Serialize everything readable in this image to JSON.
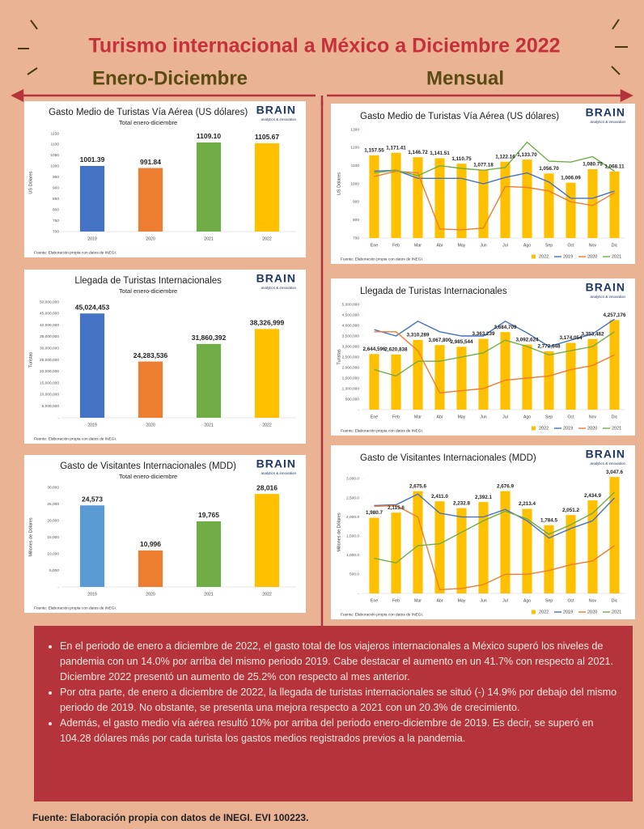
{
  "header": {
    "title": "Turismo internacional a México a Diciembre 2022",
    "left_heading": "Enero-Diciembre",
    "right_heading": "Mensual"
  },
  "logo": {
    "name": "BRAIN",
    "tagline": "analytics & innovation"
  },
  "chart_data": [
    {
      "type": "bar",
      "title": "Gasto Medio de Turistas Vía Aérea (US dólares)",
      "subtitle": "Total enero-diciembre",
      "y_label": "US Dólares",
      "note": "Fuente: Elaboración propia con datos de INEGI.",
      "categories": [
        "2019",
        "2020",
        "2021",
        "2022"
      ],
      "values": [
        1001.39,
        991.84,
        1109.1,
        1105.67
      ],
      "value_labels": [
        "1001.39",
        "991.84",
        "1109.10",
        "1105.67"
      ],
      "colors": [
        "#4472c4",
        "#ed7d31",
        "#70ad47",
        "#ffc000"
      ],
      "ylim": [
        700,
        1150
      ],
      "yticks": [
        700,
        750,
        800,
        850,
        900,
        950,
        1000,
        1050,
        1100,
        1150
      ],
      "grid": false
    },
    {
      "type": "bar",
      "title": "Llegada de Turistas Internacionales",
      "subtitle": "Total enero-diciembre",
      "y_label": "Turistas",
      "note": "Fuente: Elaboración propia con datos de INEGI.",
      "categories": [
        "2019",
        "2020",
        "2021",
        "2022"
      ],
      "values": [
        45024453,
        24283536,
        31860392,
        38326999
      ],
      "value_labels": [
        "45,024,453",
        "24,283,536",
        "31,860,392",
        "38,326,999"
      ],
      "colors": [
        "#4472c4",
        "#ed7d31",
        "#70ad47",
        "#ffc000"
      ],
      "ylim": [
        0,
        50000000
      ],
      "yticks": [
        {
          "value": 0,
          "label": "-"
        },
        {
          "value": 5000000,
          "label": "5,000,000"
        },
        {
          "value": 10000000,
          "label": "10,000,000"
        },
        {
          "value": 15000000,
          "label": "15,000,000"
        },
        {
          "value": 20000000,
          "label": "20,000,000"
        },
        {
          "value": 25000000,
          "label": "25,000,000"
        },
        {
          "value": 30000000,
          "label": "30,000,000"
        },
        {
          "value": 35000000,
          "label": "35,000,000"
        },
        {
          "value": 40000000,
          "label": "40,000,000"
        },
        {
          "value": 45000000,
          "label": "45,000,000"
        },
        {
          "value": 50000000,
          "label": "50,000,000"
        }
      ],
      "grid": false
    },
    {
      "type": "bar",
      "title": "Gasto de Visitantes Internacionales (MDD)",
      "subtitle": "Total enero-diciembre",
      "y_label": "Millones de Dólares",
      "note": "Fuente: Elaboración propia con datos de INEGI.",
      "categories": [
        "2019",
        "2020",
        "2021",
        "2022"
      ],
      "values": [
        24573,
        10996,
        19765,
        28016
      ],
      "value_labels": [
        "24,573",
        "10,996",
        "19,765",
        "28,016"
      ],
      "colors": [
        "#5b9bd5",
        "#ed7d31",
        "#70ad47",
        "#ffc000"
      ],
      "ylim": [
        0,
        30000
      ],
      "yticks": [
        {
          "value": 0,
          "label": "-"
        },
        {
          "value": 5000,
          "label": "5,000"
        },
        {
          "value": 10000,
          "label": "10,000"
        },
        {
          "value": 15000,
          "label": "15,000"
        },
        {
          "value": 20000,
          "label": "20,000"
        },
        {
          "value": 25000,
          "label": "25,000"
        },
        {
          "value": 30000,
          "label": "30,000"
        }
      ],
      "grid": false
    },
    {
      "type": "combo",
      "title": "Gasto Medio de Turistas Vía Aérea (US dólares)",
      "y_label": "US Dólares",
      "note": "Fuente: Elaboración propia con datos de INEGI.",
      "categories": [
        "Ene",
        "Feb",
        "Mar",
        "Abr",
        "May",
        "Jun",
        "Jul",
        "Ago",
        "Sep",
        "Oct",
        "Nov",
        "Dic"
      ],
      "ylim": [
        700,
        1300
      ],
      "yticks": [
        700,
        800,
        900,
        1000,
        1100,
        1200,
        1300
      ],
      "grid": false,
      "legend": "bottom",
      "series": [
        {
          "name": "2022",
          "kind": "bar",
          "color": "#ffc000",
          "values": [
            1157.55,
            1171.41,
            1146.72,
            1141.51,
            1110.75,
            1077.18,
            1122.16,
            1133.7,
            1056.7,
            1006.09,
            1080.75,
            1068.11
          ],
          "value_labels": [
            "1,157.55",
            "1,171.41",
            "1,146.72",
            "1,141.51",
            "1,110.75",
            "1,077.18",
            "1,122.16",
            "1,133.70",
            "1,056.70",
            "1,006.09",
            "1,080.75",
            "1,068.11"
          ]
        },
        {
          "name": "2019",
          "kind": "line",
          "color": "#4472c4",
          "values": [
            1070,
            1075,
            1030,
            1030,
            1030,
            1000,
            1035,
            1060,
            1010,
            920,
            920,
            960
          ]
        },
        {
          "name": "2020",
          "kind": "line",
          "color": "#ed7d31",
          "values": [
            1040,
            1070,
            1060,
            750,
            745,
            755,
            985,
            980,
            960,
            900,
            880,
            950
          ]
        },
        {
          "name": "2021",
          "kind": "line",
          "color": "#70ad47",
          "values": [
            1060,
            1075,
            1045,
            1100,
            1085,
            1075,
            1090,
            1230,
            1125,
            1120,
            1150,
            1070
          ]
        }
      ]
    },
    {
      "type": "combo",
      "title": "Llegada de Turistas Internacionales",
      "y_label": "Turistas",
      "note": "Fuente: Elaboración propia con datos de INEGI.",
      "categories": [
        "Ene",
        "Feb",
        "Mar",
        "Abr",
        "May",
        "Jun",
        "Jul",
        "Ago",
        "Sep",
        "Oct",
        "Nov",
        "Dic"
      ],
      "ylim": [
        0,
        5000000
      ],
      "yticks": [
        {
          "value": 0,
          "label": "-"
        },
        {
          "value": 500000,
          "label": "500,000"
        },
        {
          "value": 1000000,
          "label": "1,000,000"
        },
        {
          "value": 1500000,
          "label": "1,500,000"
        },
        {
          "value": 2000000,
          "label": "2,000,000"
        },
        {
          "value": 2500000,
          "label": "2,500,000"
        },
        {
          "value": 3000000,
          "label": "3,000,000"
        },
        {
          "value": 3500000,
          "label": "3,500,000"
        },
        {
          "value": 4000000,
          "label": "4,000,000"
        },
        {
          "value": 4500000,
          "label": "4,500,000"
        },
        {
          "value": 5000000,
          "label": "5,000,000"
        }
      ],
      "grid": false,
      "legend": "bottom",
      "series": [
        {
          "name": "2022",
          "kind": "bar",
          "color": "#ffc000",
          "values": [
            2644596,
            2620838,
            3310289,
            3067800,
            2985544,
            3363239,
            3684709,
            3092624,
            2772648,
            3174054,
            3353482,
            4257176
          ],
          "value_labels": [
            "2,644,596",
            "2,620,838",
            "3,310,289",
            "3,067,800",
            "2,985,544",
            "3,363,239",
            "3,684,709",
            "3,092,624",
            "2,772,648",
            "3,174,054",
            "3,353,482",
            "4,257,176"
          ]
        },
        {
          "name": "2019",
          "kind": "line",
          "color": "#4472c4",
          "values": [
            3800000,
            3500000,
            4200000,
            3700000,
            3500000,
            3500000,
            4200000,
            3650000,
            3000000,
            3300000,
            3600000,
            4300000
          ]
        },
        {
          "name": "2020",
          "kind": "line",
          "color": "#ed7d31",
          "values": [
            3700000,
            3700000,
            2800000,
            800000,
            900000,
            1000000,
            1400000,
            1500000,
            1600000,
            1900000,
            2100000,
            2600000
          ]
        },
        {
          "name": "2021",
          "kind": "line",
          "color": "#70ad47",
          "values": [
            1900000,
            1600000,
            2300000,
            2300000,
            2500000,
            2700000,
            3300000,
            3000000,
            2600000,
            2800000,
            3000000,
            3700000
          ]
        }
      ]
    },
    {
      "type": "combo",
      "title": "Gasto de Visitantes Internacionales (MDD)",
      "y_label": "Millones de Dólares",
      "note": "Fuente: Elaboración propia con datos de INEGI.",
      "categories": [
        "Ene",
        "Feb",
        "Mar",
        "Abr",
        "May",
        "Jun",
        "Jul",
        "Ago",
        "Sep",
        "Oct",
        "Nov",
        "Dic"
      ],
      "ylim": [
        0,
        3200
      ],
      "yticks": [
        {
          "value": 0,
          "label": "-"
        },
        {
          "value": 500,
          "label": "500.0"
        },
        {
          "value": 1000,
          "label": "1,000.0"
        },
        {
          "value": 1500,
          "label": "1,500.0"
        },
        {
          "value": 2000,
          "label": "2,000.0"
        },
        {
          "value": 2500,
          "label": "2,500.0"
        },
        {
          "value": 3000,
          "label": "3,000.0"
        }
      ],
      "grid": false,
      "legend": "bottom",
      "series": [
        {
          "name": "2022",
          "kind": "bar",
          "color": "#ffc000",
          "values": [
            1980.7,
            2115.6,
            2675.6,
            2411.0,
            2232.8,
            2392.1,
            2676.9,
            2213.4,
            1784.5,
            2051.2,
            2434.9,
            3047.6
          ],
          "value_labels": [
            "1,980.7",
            "2,115.6",
            "2,675.6",
            "2,411.0",
            "2,232.8",
            "2,392.1",
            "2,676.9",
            "2,213.4",
            "1,784.5",
            "2,051.2",
            "2,434.9",
            "3,047.6"
          ]
        },
        {
          "name": "2019",
          "kind": "line",
          "color": "#4472c4",
          "values": [
            2300,
            2320,
            2600,
            2100,
            2000,
            2000,
            2200,
            1900,
            1450,
            1700,
            1900,
            2500
          ]
        },
        {
          "name": "2020",
          "kind": "line",
          "color": "#ed7d31",
          "values": [
            2280,
            2300,
            2000,
            100,
            130,
            230,
            500,
            500,
            600,
            750,
            850,
            1250
          ]
        },
        {
          "name": "2021",
          "kind": "line",
          "color": "#70ad47",
          "values": [
            920,
            800,
            1250,
            1300,
            1600,
            1900,
            2150,
            1950,
            1550,
            1800,
            2100,
            2650
          ]
        }
      ]
    }
  ],
  "notes": [
    "En el periodo de enero a diciembre de 2022, el gasto total de los viajeros internacionales a México superó los niveles de pandemia con un 14.0% por arriba del mismo periodo 2019. Cabe destacar el aumento en un 41.7% con respecto al 2021. Diciembre 2022 presentó un aumento de 25.2% con respecto al mes anterior.",
    "Por otra parte, de enero a diciembre de 2022, la llegada de turistas internacionales se situó (-) 14.9% por debajo del mismo periodo de 2019. No obstante, se presenta una mejora respecto a 2021 con un 20.3% de crecimiento.",
    "Además, el gasto medio vía aérea resultó 10% por arriba del periodo enero-diciembre de 2019. Es decir, se superó en 104.28 dólares más por cada turista los gastos medios registrados previos a la pandemia."
  ],
  "footer": "Fuente: Elaboración propia con datos de INEGI. EVI 100223."
}
